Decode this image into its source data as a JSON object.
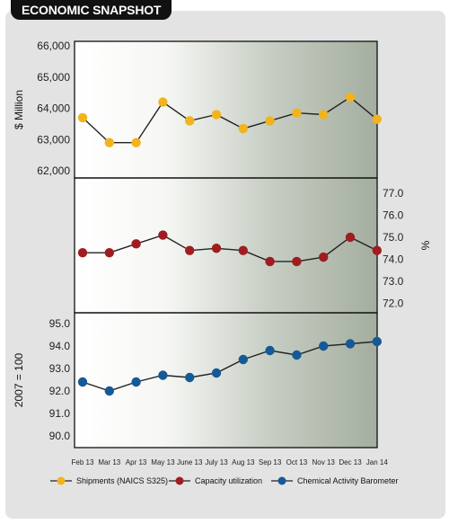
{
  "header": {
    "title": "ECONOMIC SNAPSHOT"
  },
  "chart_data": [
    {
      "type": "line",
      "ylabel": "$ Million",
      "ylim": [
        62000,
        66000
      ],
      "yticks": [
        "66,000",
        "65,000",
        "64,000",
        "63,000",
        "62,000"
      ],
      "ytick_values": [
        66000,
        65000,
        64000,
        63000,
        62000
      ],
      "series": [
        {
          "name": "Shipments (NAICS S325)",
          "color": "#f2b31c",
          "values": [
            63700,
            62900,
            62900,
            64200,
            63600,
            63800,
            63350,
            63600,
            63850,
            63800,
            64350,
            63650
          ]
        }
      ]
    },
    {
      "type": "line",
      "ylabel": "%",
      "ylim": [
        72.0,
        77.0
      ],
      "yticks": [
        "77.0",
        "76.0",
        "75.0",
        "74.0",
        "73.0",
        "72.0"
      ],
      "ytick_values": [
        77,
        76,
        75,
        74,
        73,
        72
      ],
      "series": [
        {
          "name": "Capacity utilization",
          "color": "#a01c20",
          "values": [
            74.3,
            74.3,
            74.7,
            75.1,
            74.4,
            74.5,
            74.4,
            73.9,
            73.9,
            74.1,
            75.0,
            74.4
          ]
        }
      ]
    },
    {
      "type": "line",
      "ylabel": "2007 = 100",
      "ylim": [
        90.0,
        95.0
      ],
      "yticks": [
        "95.0",
        "94.0",
        "93.0",
        "92.0",
        "91.0",
        "90.0"
      ],
      "ytick_values": [
        95,
        94,
        93,
        92,
        91,
        90
      ],
      "series": [
        {
          "name": "Chemical Activity Barometer",
          "color": "#155a96",
          "values": [
            92.4,
            92.0,
            92.4,
            92.7,
            92.6,
            92.8,
            93.4,
            93.8,
            93.6,
            94.0,
            94.1,
            94.2
          ]
        }
      ]
    }
  ],
  "x_categories": [
    "Feb 13",
    "Mar 13",
    "Apr 13",
    "May 13",
    "June 13",
    "July 13",
    "Aug 13",
    "Sep 13",
    "Oct 13",
    "Nov 13",
    "Dec 13",
    "Jan 14"
  ],
  "legend": [
    {
      "label": "Shipments (NAICS S325)",
      "color": "#f2b31c"
    },
    {
      "label": "Capacity utilization",
      "color": "#a01c20"
    },
    {
      "label": "Chemical Activity Barometer",
      "color": "#155a96"
    }
  ]
}
